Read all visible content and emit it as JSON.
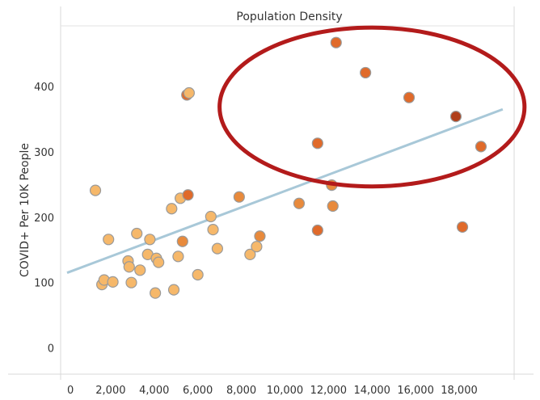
{
  "chart_data": {
    "type": "scatter",
    "title": "Population Density",
    "xlabel": "",
    "ylabel": "COVID+ Per 10K People",
    "xlim": [
      0,
      20000
    ],
    "ylim": [
      -40,
      500
    ],
    "x_ticks": [
      0,
      2000,
      4000,
      6000,
      8000,
      10000,
      12000,
      14000,
      16000,
      18000
    ],
    "x_tick_labels": [
      "0",
      "2,000",
      "4,000",
      "6,000",
      "8,000",
      "10,000",
      "12,000",
      "14,000",
      "16,000",
      "18,000"
    ],
    "y_ticks": [
      0,
      100,
      200,
      300,
      400
    ],
    "y_tick_labels": [
      "0",
      "100",
      "200",
      "300",
      "400"
    ],
    "grid": false,
    "trend_line": {
      "color": "#a8c8d8",
      "points": [
        [
          0,
          115
        ],
        [
          20000,
          365
        ]
      ]
    },
    "highlight_ellipse": {
      "color": "#b31b1b",
      "x_range": [
        7000,
        21000
      ],
      "y_range": [
        247,
        490
      ]
    },
    "colors": {
      "light": "#f6b86a",
      "medium": "#e88a3c",
      "dark": "#e06a2a",
      "darkest": "#b0401c"
    },
    "points": [
      {
        "x": 1300,
        "y": 241,
        "color": "light"
      },
      {
        "x": 1600,
        "y": 97,
        "color": "light"
      },
      {
        "x": 1700,
        "y": 104,
        "color": "light"
      },
      {
        "x": 1900,
        "y": 166,
        "color": "light"
      },
      {
        "x": 2100,
        "y": 101,
        "color": "light"
      },
      {
        "x": 2800,
        "y": 133,
        "color": "light"
      },
      {
        "x": 2850,
        "y": 124,
        "color": "light"
      },
      {
        "x": 2950,
        "y": 100,
        "color": "light"
      },
      {
        "x": 3200,
        "y": 175,
        "color": "light"
      },
      {
        "x": 3350,
        "y": 119,
        "color": "light"
      },
      {
        "x": 3700,
        "y": 143,
        "color": "light"
      },
      {
        "x": 3800,
        "y": 166,
        "color": "light"
      },
      {
        "x": 4050,
        "y": 84,
        "color": "light"
      },
      {
        "x": 4100,
        "y": 137,
        "color": "light"
      },
      {
        "x": 4200,
        "y": 131,
        "color": "light"
      },
      {
        "x": 4800,
        "y": 213,
        "color": "light"
      },
      {
        "x": 4900,
        "y": 89,
        "color": "light"
      },
      {
        "x": 5100,
        "y": 140,
        "color": "light"
      },
      {
        "x": 5200,
        "y": 229,
        "color": "light"
      },
      {
        "x": 5300,
        "y": 163,
        "color": "medium"
      },
      {
        "x": 5500,
        "y": 387,
        "color": "dark"
      },
      {
        "x": 5550,
        "y": 234,
        "color": "dark"
      },
      {
        "x": 5600,
        "y": 390,
        "color": "light"
      },
      {
        "x": 6000,
        "y": 112,
        "color": "light"
      },
      {
        "x": 6600,
        "y": 201,
        "color": "light"
      },
      {
        "x": 6700,
        "y": 181,
        "color": "light"
      },
      {
        "x": 6900,
        "y": 152,
        "color": "light"
      },
      {
        "x": 7900,
        "y": 231,
        "color": "medium"
      },
      {
        "x": 8400,
        "y": 143,
        "color": "light"
      },
      {
        "x": 8700,
        "y": 155,
        "color": "light"
      },
      {
        "x": 8850,
        "y": 171,
        "color": "medium"
      },
      {
        "x": 10650,
        "y": 221,
        "color": "medium"
      },
      {
        "x": 11500,
        "y": 180,
        "color": "dark"
      },
      {
        "x": 11500,
        "y": 313,
        "color": "dark"
      },
      {
        "x": 12150,
        "y": 249,
        "color": "medium"
      },
      {
        "x": 12200,
        "y": 217,
        "color": "medium"
      },
      {
        "x": 12350,
        "y": 467,
        "color": "dark"
      },
      {
        "x": 13700,
        "y": 421,
        "color": "dark"
      },
      {
        "x": 15700,
        "y": 383,
        "color": "dark"
      },
      {
        "x": 17850,
        "y": 354,
        "color": "darkest"
      },
      {
        "x": 18150,
        "y": 185,
        "color": "dark"
      },
      {
        "x": 19000,
        "y": 308,
        "color": "dark"
      }
    ]
  }
}
